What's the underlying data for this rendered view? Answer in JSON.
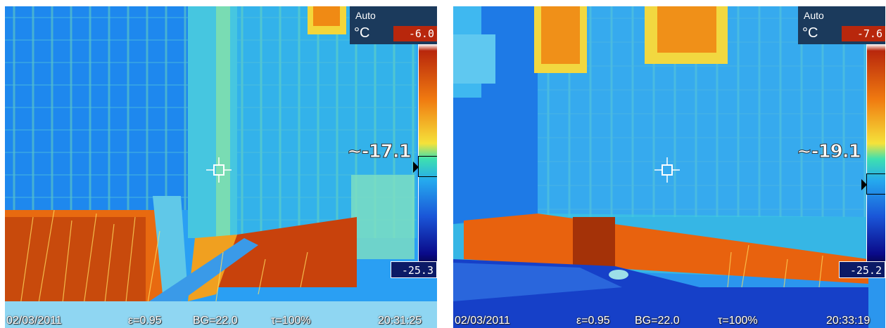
{
  "panels": [
    {
      "id": "left",
      "auto_label": "Auto",
      "unit": "°C",
      "scale_max": "-6.0",
      "scale_min": "-25.3",
      "spot_reading": "~-17.1",
      "status": {
        "date": "02/03/2011",
        "emissivity": "ε=0.95",
        "background": "BG=22.0",
        "transmission": "τ=100%",
        "time": "20:31:25"
      }
    },
    {
      "id": "right",
      "auto_label": "Auto",
      "unit": "°C",
      "scale_max": "-7.6",
      "scale_min": "-25.2",
      "spot_reading": "~-19.1",
      "status": {
        "date": "02/03/2011",
        "emissivity": "ε=0.95",
        "background": "BG=22.0",
        "transmission": "τ=100%",
        "time": "20:33:19"
      }
    }
  ],
  "colors": {
    "hot": "#b8270c",
    "warm": "#f07a10",
    "neutral": "#f5e23a",
    "cool": "#25a8ee",
    "cold": "#0a0a8a",
    "hud_background": "#1b3a5c"
  },
  "icons": {
    "crosshair": "crosshair-icon",
    "scale_marker": "triangle-marker-icon"
  }
}
